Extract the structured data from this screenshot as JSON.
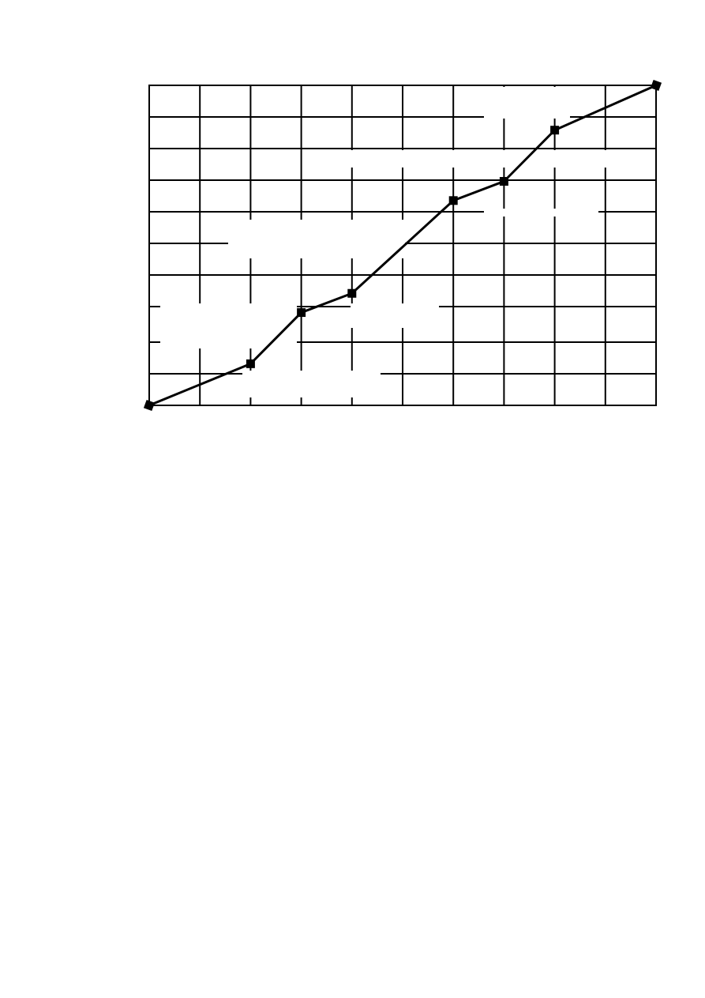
{
  "chart_data": {
    "type": "line",
    "title": "",
    "xlabel": "",
    "ylabel": "",
    "xlim": [
      0,
      10
    ],
    "ylim": [
      0,
      10
    ],
    "grid": true,
    "x_gridlines": 10,
    "y_gridlines": 10,
    "series": [
      {
        "x": [
          0,
          2,
          3,
          4,
          6,
          7,
          8,
          10
        ],
        "y": [
          0,
          1.3,
          2.9,
          3.5,
          6.4,
          7.0,
          8.6,
          10
        ],
        "color": "#000000",
        "marker": "square"
      }
    ]
  }
}
